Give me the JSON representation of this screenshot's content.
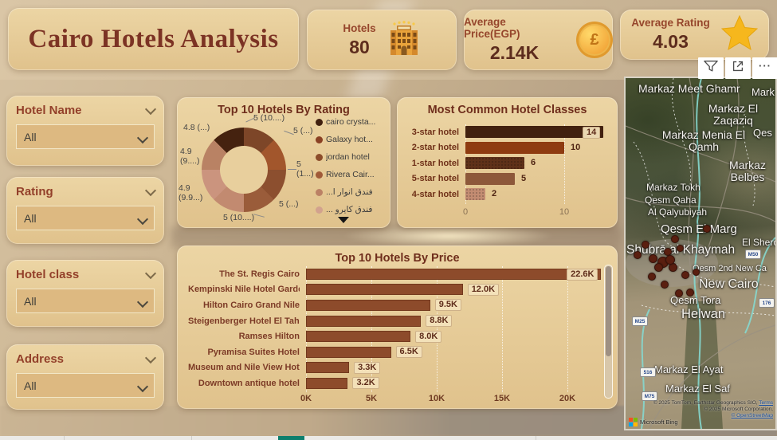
{
  "header": {
    "title": "Cairo Hotels Analysis",
    "kpis": [
      {
        "label": "Hotels",
        "value": "80",
        "icon": "hotel-building-icon"
      },
      {
        "label": "Average Price(EGP)",
        "value": "2.14K",
        "icon": "pound-coin-icon",
        "coin_glyph": "£"
      },
      {
        "label": "Average Rating",
        "value": "4.03",
        "icon": "star-icon"
      }
    ]
  },
  "visual_toolbar": {
    "more_label": "···"
  },
  "filters": [
    {
      "label": "Hotel Name",
      "value": "All"
    },
    {
      "label": "Rating",
      "value": "All"
    },
    {
      "label": "Hotel class",
      "value": "All"
    },
    {
      "label": "Address",
      "value": "All"
    }
  ],
  "chart_data": [
    {
      "type": "donut",
      "title": "Top 10 Hotels By Rating",
      "legend_position": "right",
      "slices": [
        {
          "label": "5 (10....)",
          "value": 5
        },
        {
          "label": "5 (...)",
          "value": 5
        },
        {
          "label": "5 (1...)",
          "value": 5
        },
        {
          "label": "5 (...)",
          "value": 5
        },
        {
          "label": "5 (10....)",
          "value": 5
        },
        {
          "label": "4.9 (9.9...)",
          "value": 4.9
        },
        {
          "label": "4.9 (9....)",
          "value": 4.9
        },
        {
          "label": "4.8 (...)",
          "value": 4.8
        }
      ],
      "slice_colors": [
        "#7d4628",
        "#a2562c",
        "#8c4f2f",
        "#9a5c3a",
        "#c28a70",
        "#cb947e",
        "#b98264",
        "#45220f"
      ],
      "legend": [
        {
          "name": "cairo crysta...",
          "color": "#40200f"
        },
        {
          "name": "Galaxy hot...",
          "color": "#8a4123"
        },
        {
          "name": "jordan hotel",
          "color": "#8c4c2a"
        },
        {
          "name": "Rivera Cair...",
          "color": "#a05a38"
        },
        {
          "name": "فندق انوار ا...",
          "color": "#bb8165"
        },
        {
          "name": "فندق كايرو ...",
          "color": "#d2a28e"
        }
      ]
    },
    {
      "type": "bar",
      "orientation": "horizontal",
      "title": "Most Common Hotel Classes",
      "categories": [
        "3-star hotel",
        "2-star hotel",
        "1-star hotel",
        "5-star hotel",
        "4-star hotel"
      ],
      "values": [
        14,
        10,
        6,
        5,
        2
      ],
      "bar_colors": [
        "#42210f",
        "#8e3b10",
        "#5f3119",
        "#8d583a",
        "#c38c72"
      ],
      "x_ticks": [
        "0",
        "10"
      ],
      "xlim": [
        0,
        14.3
      ]
    },
    {
      "type": "bar",
      "orientation": "horizontal",
      "title": "Top 10 Hotels By Price",
      "categories": [
        "The St. Regis Cairo",
        "Kempinski Nile Hotel Garde...",
        "Hilton Cairo Grand Nile",
        "Steigenberger Hotel El Tahri...",
        "Ramses Hilton",
        "Pyramisa Suites Hotel",
        "Museum and Nile View Hotel",
        "Downtown antique hotel"
      ],
      "values": [
        22600,
        12000,
        9500,
        8800,
        8000,
        6500,
        3300,
        3200
      ],
      "value_labels": [
        "22.6K",
        "12.0K",
        "9.5K",
        "8.8K",
        "8.0K",
        "6.5K",
        "3.3K",
        "3.2K"
      ],
      "bar_color": "#8d4b2b",
      "x_ticks": [
        "0K",
        "5K",
        "10K",
        "15K",
        "20K"
      ],
      "xlim": [
        0,
        23000
      ]
    }
  ],
  "map": {
    "labels": [
      "Markaz Meet Ghamr",
      "Mark",
      "Markaz El Zaqaziq",
      "Qes",
      "Markaz Menia El Qamh",
      "Markaz Belbes",
      "Markaz Tokh",
      "Qesm Qaha",
      "Al Qalyubiyah",
      "Qesm El Marg",
      "El Shero",
      "Shubrā al Khaymah",
      "Qesm 2nd New Ca",
      "New Cairo",
      "Qesm Tora",
      "Helwan",
      "Markaz El Ayat",
      "Markaz El Saf"
    ],
    "road_badges": [
      "M50",
      "176",
      "M25",
      "516",
      "M75"
    ],
    "attribution": {
      "line1": "© 2025 TomTom, Earthstar Geographics SIO,",
      "terms": "Terms",
      "line2": "© 2025 Microsoft Corporation,",
      "osm": "© OpenStreetMap",
      "bing": "Microsoft Bing"
    }
  }
}
